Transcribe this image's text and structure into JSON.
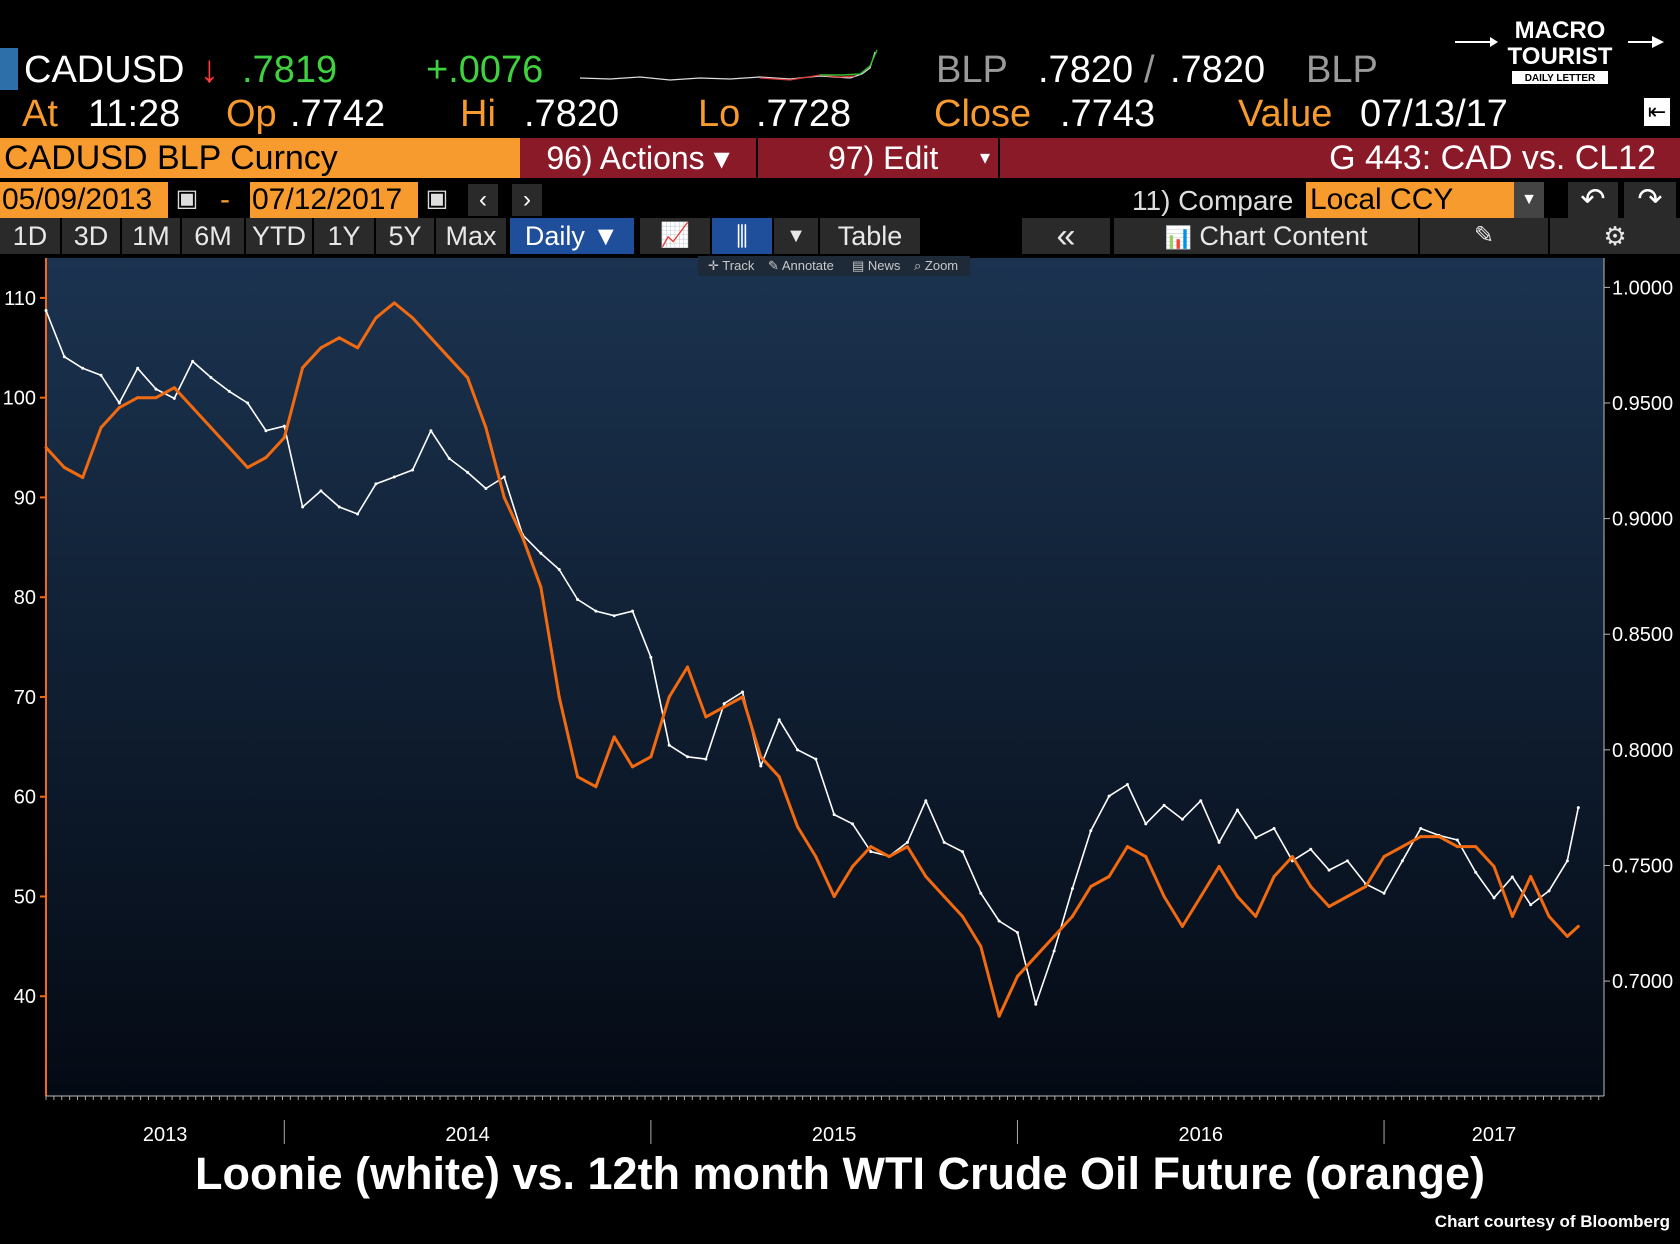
{
  "quote": {
    "ticker": "CADUSD",
    "arrow": "↓",
    "last": ".7819",
    "change": "+.0076",
    "bid_src": "BLP",
    "bid": ".7820",
    "separator": "/",
    "ask": ".7820",
    "ask_src": "BLP",
    "at_label": "At",
    "at_time": "11:28",
    "op_label": "Op",
    "op": ".7742",
    "hi_label": "Hi",
    "hi": ".7820",
    "lo_label": "Lo",
    "lo": ".7728",
    "close_label": "Close",
    "close": ".7743",
    "value_label": "Value",
    "value_date": "07/13/17"
  },
  "security_bar": {
    "security": "CADUSD BLP Curncy",
    "actions": "96) Actions ▾",
    "edit": "97) Edit",
    "graph_name": "G 443: CAD vs. CL12"
  },
  "date_bar": {
    "start": "05/09/2013",
    "dash": "-",
    "end": "07/12/2017",
    "compare": "11) Compare",
    "currency": "Local CCY"
  },
  "toolbar": {
    "ranges": [
      "1D",
      "3D",
      "1M",
      "6M",
      "YTD",
      "1Y",
      "5Y",
      "Max"
    ],
    "frequency": "Daily ▼",
    "table": "Table",
    "collapse": "«",
    "chart_content": "Chart Content"
  },
  "mini_tools": {
    "track": "Track",
    "annotate": "Annotate",
    "news": "News",
    "zoom": "Zoom"
  },
  "logo": {
    "line1": "MACRO",
    "line2": "TOURIST",
    "line3": "DAILY LETTER"
  },
  "caption": "Loonie (white) vs. 12th month WTI Crude Oil Future (orange)",
  "credit": "Chart courtesy of Bloomberg",
  "colors": {
    "background_top": "#1b3350",
    "background_bottom": "#040a14",
    "orange": "#f26a10",
    "white": "#ffffff",
    "header_orange": "#f79b2e",
    "header_maroon": "#8b1a28",
    "button_blue": "#1f4e9a"
  },
  "chart_data": {
    "type": "line",
    "title": "Loonie (white) vs. 12th month WTI Crude Oil Future (orange)",
    "x_tick_labels": [
      "2013",
      "2014",
      "2015",
      "2016",
      "2017"
    ],
    "x_range": [
      2013.35,
      2017.6
    ],
    "y_left_ticks": [
      40,
      50,
      60,
      70,
      80,
      90,
      100,
      110
    ],
    "y_left_range": [
      30,
      114
    ],
    "y_right_ticks": [
      "0.7000",
      "0.7500",
      "0.8000",
      "0.8500",
      "0.9000",
      "0.9500",
      "1.0000"
    ],
    "y_right_range": [
      0.6503,
      1.0127
    ],
    "grid": false,
    "series": [
      {
        "name": "Loonie (white)",
        "axis": "right",
        "color": "#ffffff",
        "x": [
          2013.35,
          2013.4,
          2013.45,
          2013.5,
          2013.55,
          2013.6,
          2013.65,
          2013.7,
          2013.75,
          2013.8,
          2013.85,
          2013.9,
          2013.95,
          2014.0,
          2014.05,
          2014.1,
          2014.15,
          2014.2,
          2014.25,
          2014.3,
          2014.35,
          2014.4,
          2014.45,
          2014.5,
          2014.55,
          2014.6,
          2014.65,
          2014.7,
          2014.75,
          2014.8,
          2014.85,
          2014.9,
          2014.95,
          2015.0,
          2015.05,
          2015.1,
          2015.15,
          2015.2,
          2015.25,
          2015.3,
          2015.35,
          2015.4,
          2015.45,
          2015.5,
          2015.55,
          2015.6,
          2015.65,
          2015.7,
          2015.75,
          2015.8,
          2015.85,
          2015.9,
          2015.95,
          2016.0,
          2016.05,
          2016.1,
          2016.15,
          2016.2,
          2016.25,
          2016.3,
          2016.35,
          2016.4,
          2016.45,
          2016.5,
          2016.55,
          2016.6,
          2016.65,
          2016.7,
          2016.75,
          2016.8,
          2016.85,
          2016.9,
          2016.95,
          2017.0,
          2017.05,
          2017.1,
          2017.15,
          2017.2,
          2017.25,
          2017.3,
          2017.35,
          2017.4,
          2017.45,
          2017.5,
          2017.53
        ],
        "y": [
          0.99,
          0.97,
          0.965,
          0.962,
          0.95,
          0.965,
          0.956,
          0.952,
          0.968,
          0.961,
          0.955,
          0.95,
          0.938,
          0.94,
          0.905,
          0.912,
          0.905,
          0.902,
          0.915,
          0.918,
          0.921,
          0.938,
          0.926,
          0.92,
          0.913,
          0.918,
          0.893,
          0.885,
          0.878,
          0.865,
          0.86,
          0.858,
          0.86,
          0.84,
          0.802,
          0.797,
          0.796,
          0.82,
          0.825,
          0.793,
          0.813,
          0.8,
          0.796,
          0.772,
          0.768,
          0.756,
          0.754,
          0.76,
          0.778,
          0.76,
          0.756,
          0.738,
          0.726,
          0.721,
          0.69,
          0.713,
          0.74,
          0.765,
          0.78,
          0.785,
          0.768,
          0.776,
          0.77,
          0.778,
          0.76,
          0.774,
          0.762,
          0.766,
          0.752,
          0.757,
          0.748,
          0.752,
          0.742,
          0.738,
          0.752,
          0.766,
          0.763,
          0.761,
          0.747,
          0.736,
          0.745,
          0.733,
          0.739,
          0.752,
          0.775
        ]
      },
      {
        "name": "12th month WTI Crude Oil Future (orange)",
        "axis": "left",
        "color": "#f26a10",
        "x": [
          2013.35,
          2013.4,
          2013.45,
          2013.5,
          2013.55,
          2013.6,
          2013.65,
          2013.7,
          2013.75,
          2013.8,
          2013.85,
          2013.9,
          2013.95,
          2014.0,
          2014.05,
          2014.1,
          2014.15,
          2014.2,
          2014.25,
          2014.3,
          2014.35,
          2014.4,
          2014.45,
          2014.5,
          2014.55,
          2014.6,
          2014.65,
          2014.7,
          2014.75,
          2014.8,
          2014.85,
          2014.9,
          2014.95,
          2015.0,
          2015.05,
          2015.1,
          2015.15,
          2015.2,
          2015.25,
          2015.3,
          2015.35,
          2015.4,
          2015.45,
          2015.5,
          2015.55,
          2015.6,
          2015.65,
          2015.7,
          2015.75,
          2015.8,
          2015.85,
          2015.9,
          2015.95,
          2016.0,
          2016.05,
          2016.1,
          2016.15,
          2016.2,
          2016.25,
          2016.3,
          2016.35,
          2016.4,
          2016.45,
          2016.5,
          2016.55,
          2016.6,
          2016.65,
          2016.7,
          2016.75,
          2016.8,
          2016.85,
          2016.9,
          2016.95,
          2017.0,
          2017.05,
          2017.1,
          2017.15,
          2017.2,
          2017.25,
          2017.3,
          2017.35,
          2017.4,
          2017.45,
          2017.5,
          2017.53
        ],
        "y": [
          95,
          93,
          92,
          97,
          99,
          100,
          100,
          101,
          99,
          97,
          95,
          93,
          94,
          96,
          103,
          105,
          106,
          105,
          108,
          109.5,
          108,
          106,
          104,
          102,
          97,
          90,
          86,
          81,
          70,
          62,
          61,
          66,
          63,
          64,
          70,
          73,
          68,
          69,
          70,
          64,
          62,
          57,
          54,
          50,
          53,
          55,
          54,
          55,
          52,
          50,
          48,
          45,
          38,
          42,
          44,
          46,
          48,
          51,
          52,
          55,
          54,
          50,
          47,
          50,
          53,
          50,
          48,
          52,
          54,
          51,
          49,
          50,
          51,
          54,
          55,
          56,
          56,
          55,
          55,
          53,
          48,
          52,
          48,
          46,
          47
        ]
      }
    ]
  }
}
